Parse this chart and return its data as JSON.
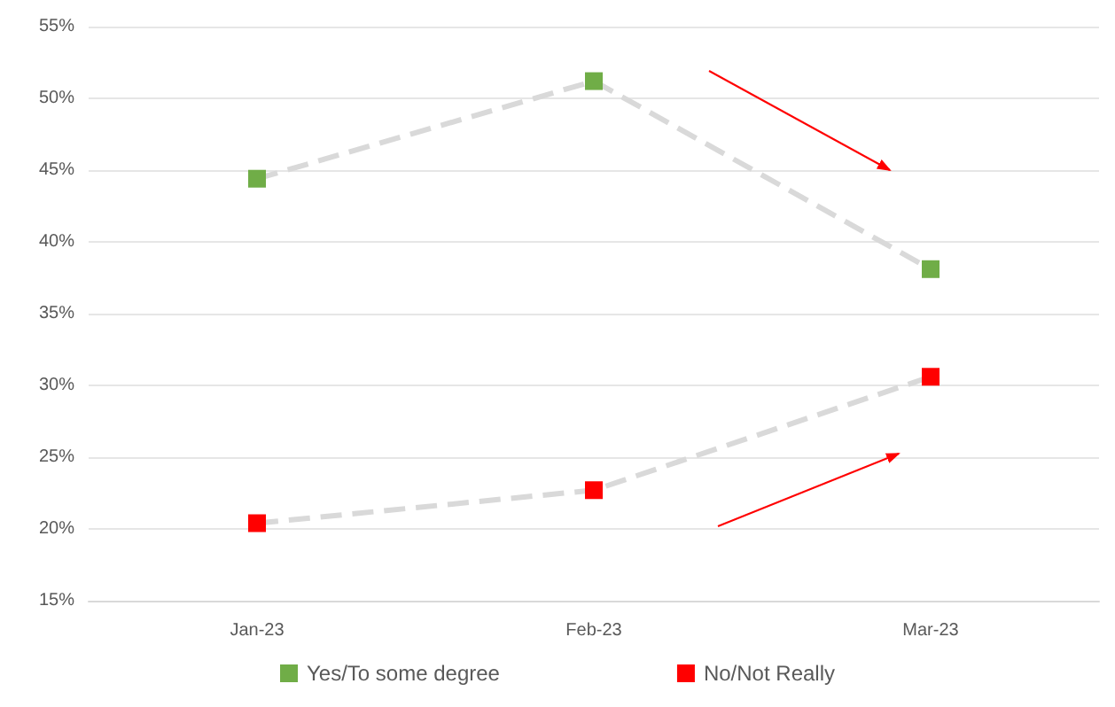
{
  "chart_data": {
    "type": "line",
    "categories": [
      "Jan-23",
      "Feb-23",
      "Mar-23"
    ],
    "series": [
      {
        "name": "Yes/To some degree",
        "color": "#70ad47",
        "values": [
          44.4,
          51.2,
          38.1
        ]
      },
      {
        "name": "No/Not Really",
        "color": "#ff0000",
        "values": [
          20.4,
          22.7,
          30.6
        ]
      }
    ],
    "ylim": [
      15,
      55
    ],
    "yticks": [
      {
        "value": 15,
        "label": "15%"
      },
      {
        "value": 20,
        "label": "20%"
      },
      {
        "value": 25,
        "label": "25%"
      },
      {
        "value": 30,
        "label": "30%"
      },
      {
        "value": 35,
        "label": "35%"
      },
      {
        "value": 40,
        "label": "40%"
      },
      {
        "value": 45,
        "label": "45%"
      },
      {
        "value": 50,
        "label": "50%"
      },
      {
        "value": 55,
        "label": "55%"
      }
    ],
    "grid": "y",
    "legend": "bottom",
    "marker": "square",
    "line_style": "dashed"
  }
}
